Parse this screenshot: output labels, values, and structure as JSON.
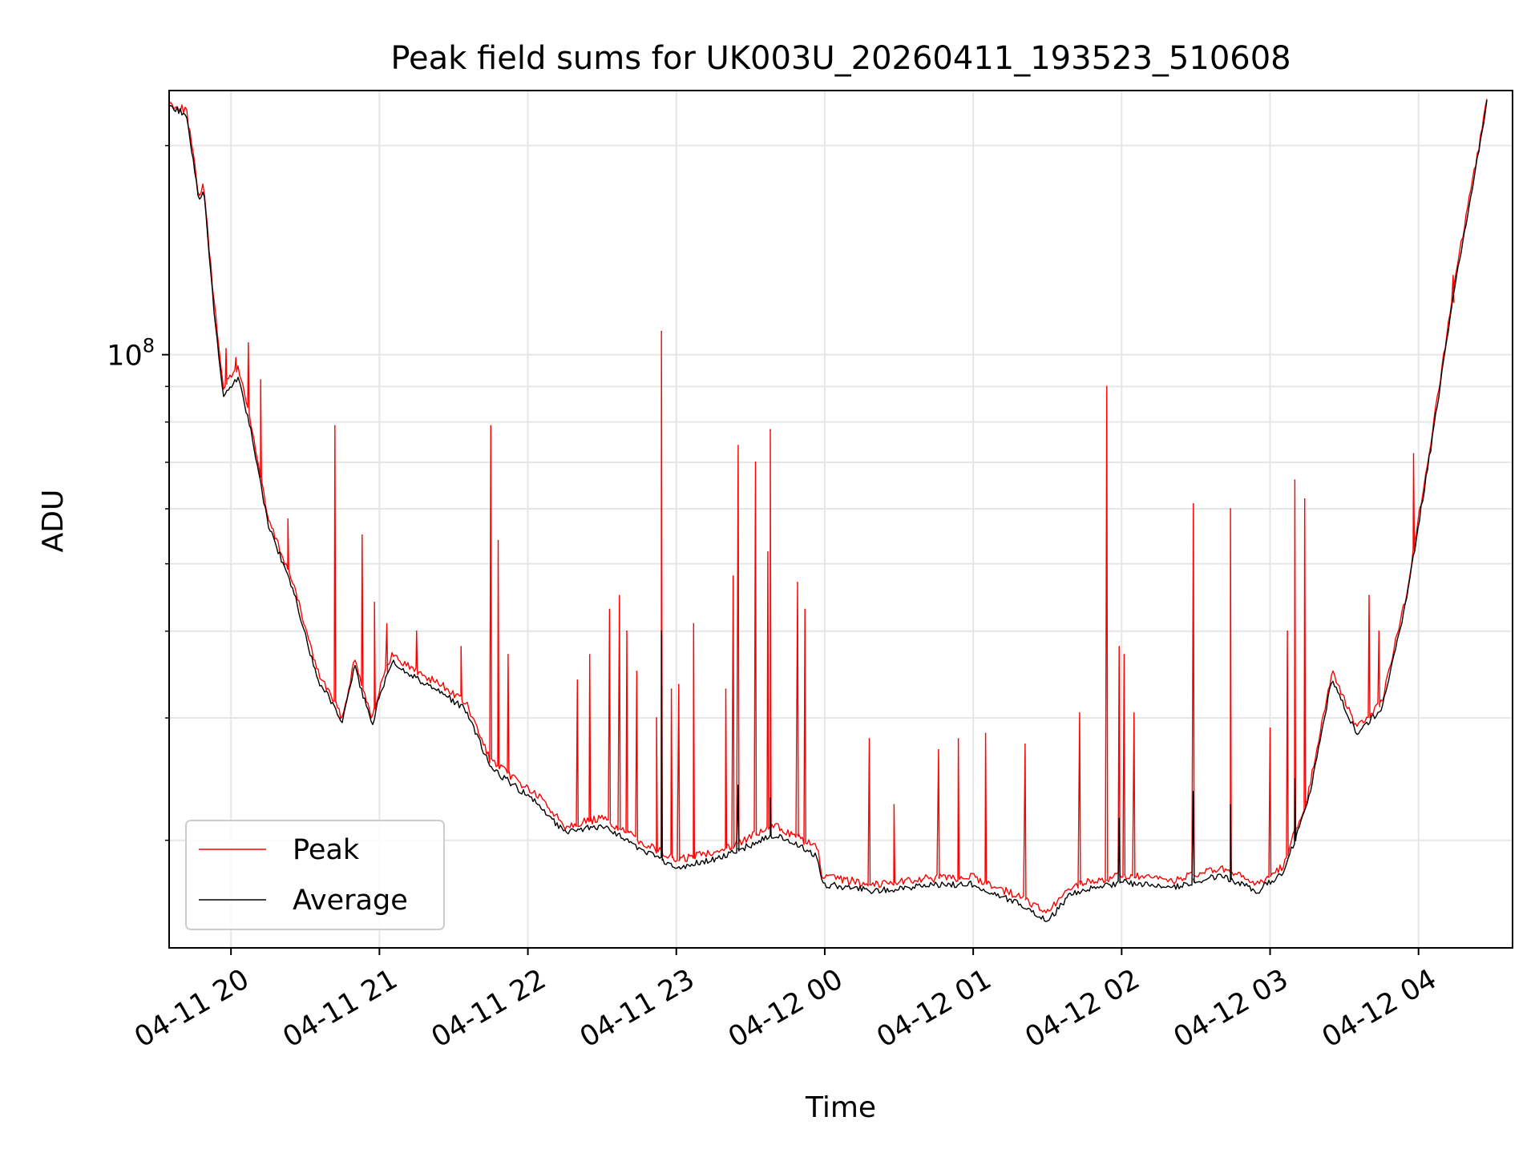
{
  "chart_data": {
    "type": "line",
    "title": "Peak field sums for UK003U_20260411_193523_510608",
    "xlabel": "Time",
    "ylabel": "ADU",
    "y_scale": "log",
    "grid": true,
    "legend_position": "lower-left",
    "x_range": [
      "2026-04-11 19:35",
      "2026-04-12 04:38"
    ],
    "ylim": [
      14000000,
      240000000
    ],
    "x_ticks": [
      {
        "t": "2026-04-11 20:00",
        "label": "04-11 20"
      },
      {
        "t": "2026-04-11 21:00",
        "label": "04-11 21"
      },
      {
        "t": "2026-04-11 22:00",
        "label": "04-11 22"
      },
      {
        "t": "2026-04-11 23:00",
        "label": "04-11 23"
      },
      {
        "t": "2026-04-12 00:00",
        "label": "04-12 00"
      },
      {
        "t": "2026-04-12 01:00",
        "label": "04-12 01"
      },
      {
        "t": "2026-04-12 02:00",
        "label": "04-12 02"
      },
      {
        "t": "2026-04-12 03:00",
        "label": "04-12 03"
      },
      {
        "t": "2026-04-12 04:00",
        "label": "04-12 04"
      }
    ],
    "y_major_ticks": [
      {
        "value": 100000000,
        "base": "10",
        "exp": "8"
      }
    ],
    "y_minor_ticks": [
      20000000,
      30000000,
      40000000,
      50000000,
      60000000,
      70000000,
      80000000,
      90000000,
      200000000
    ],
    "series": [
      {
        "name": "Peak",
        "color": "#ff0000",
        "baseline": [
          [
            "2026-04-11 19:35",
            230000000
          ],
          [
            "2026-04-11 19:42",
            225000000
          ],
          [
            "2026-04-11 19:47",
            170000000
          ],
          [
            "2026-04-11 19:49",
            175000000
          ],
          [
            "2026-04-11 19:53",
            120000000
          ],
          [
            "2026-04-11 19:57",
            90000000
          ],
          [
            "2026-04-11 20:03",
            96000000
          ],
          [
            "2026-04-11 20:08",
            80000000
          ],
          [
            "2026-04-11 20:15",
            58000000
          ],
          [
            "2026-04-11 20:25",
            47000000
          ],
          [
            "2026-04-11 20:35",
            35000000
          ],
          [
            "2026-04-11 20:40",
            32500000
          ],
          [
            "2026-04-11 20:45",
            30000000
          ],
          [
            "2026-04-11 20:50",
            36500000
          ],
          [
            "2026-04-11 20:57",
            30000000
          ],
          [
            "2026-04-11 21:00",
            33000000
          ],
          [
            "2026-04-11 21:05",
            37000000
          ],
          [
            "2026-04-11 21:15",
            35000000
          ],
          [
            "2026-04-11 21:25",
            33500000
          ],
          [
            "2026-04-11 21:35",
            31500000
          ],
          [
            "2026-04-11 21:45",
            26000000
          ],
          [
            "2026-04-11 21:55",
            24500000
          ],
          [
            "2026-04-11 22:05",
            23000000
          ],
          [
            "2026-04-11 22:15",
            21000000
          ],
          [
            "2026-04-11 22:30",
            21500000
          ],
          [
            "2026-04-11 22:45",
            20000000
          ],
          [
            "2026-04-11 23:00",
            18700000
          ],
          [
            "2026-04-11 23:20",
            19500000
          ],
          [
            "2026-04-11 23:40",
            21000000
          ],
          [
            "2026-04-11 23:57",
            19500000
          ],
          [
            "2026-04-11 23:59",
            17700000
          ],
          [
            "2026-04-12 00:20",
            17300000
          ],
          [
            "2026-04-12 00:40",
            17600000
          ],
          [
            "2026-04-12 01:00",
            17700000
          ],
          [
            "2026-04-12 01:20",
            16500000
          ],
          [
            "2026-04-12 01:30",
            15700000
          ],
          [
            "2026-04-12 01:40",
            17200000
          ],
          [
            "2026-04-12 02:00",
            17800000
          ],
          [
            "2026-04-12 02:20",
            17500000
          ],
          [
            "2026-04-12 02:40",
            18200000
          ],
          [
            "2026-04-12 02:55",
            17300000
          ],
          [
            "2026-04-12 03:05",
            18300000
          ],
          [
            "2026-04-12 03:15",
            23000000
          ],
          [
            "2026-04-12 03:25",
            35000000
          ],
          [
            "2026-04-12 03:35",
            29000000
          ],
          [
            "2026-04-12 03:45",
            31500000
          ],
          [
            "2026-04-12 03:55",
            45000000
          ],
          [
            "2026-04-12 04:05",
            75000000
          ],
          [
            "2026-04-12 04:15",
            130000000
          ],
          [
            "2026-04-12 04:25",
            205000000
          ],
          [
            "2026-04-12 04:28",
            240000000
          ]
        ],
        "spikes": [
          [
            "2026-04-11 19:58",
            102000000
          ],
          [
            "2026-04-11 20:02",
            99000000
          ],
          [
            "2026-04-11 20:07",
            104000000
          ],
          [
            "2026-04-11 20:12",
            92000000
          ],
          [
            "2026-04-11 20:23",
            58000000
          ],
          [
            "2026-04-11 20:42",
            79000000
          ],
          [
            "2026-04-11 20:53",
            55000000
          ],
          [
            "2026-04-11 20:58",
            44000000
          ],
          [
            "2026-04-11 21:03",
            41000000
          ],
          [
            "2026-04-11 21:15",
            40000000
          ],
          [
            "2026-04-11 21:33",
            38000000
          ],
          [
            "2026-04-11 21:45",
            79000000
          ],
          [
            "2026-04-11 21:48",
            54000000
          ],
          [
            "2026-04-11 21:52",
            37000000
          ],
          [
            "2026-04-11 22:20",
            34000000
          ],
          [
            "2026-04-11 22:25",
            37000000
          ],
          [
            "2026-04-11 22:33",
            43000000
          ],
          [
            "2026-04-11 22:37",
            45000000
          ],
          [
            "2026-04-11 22:40",
            40000000
          ],
          [
            "2026-04-11 22:44",
            35000000
          ],
          [
            "2026-04-11 22:52",
            30000000
          ],
          [
            "2026-04-11 22:54",
            108000000
          ],
          [
            "2026-04-11 22:58",
            33000000
          ],
          [
            "2026-04-11 23:01",
            33500000
          ],
          [
            "2026-04-11 23:07",
            41000000
          ],
          [
            "2026-04-11 23:20",
            33000000
          ],
          [
            "2026-04-11 23:23",
            48000000
          ],
          [
            "2026-04-11 23:25",
            74000000
          ],
          [
            "2026-04-11 23:32",
            70000000
          ],
          [
            "2026-04-11 23:37",
            52000000
          ],
          [
            "2026-04-11 23:38",
            78000000
          ],
          [
            "2026-04-11 23:49",
            47000000
          ],
          [
            "2026-04-11 23:52",
            43000000
          ],
          [
            "2026-04-12 00:18",
            28000000
          ],
          [
            "2026-04-12 00:28",
            22500000
          ],
          [
            "2026-04-12 00:46",
            27000000
          ],
          [
            "2026-04-12 00:54",
            28000000
          ],
          [
            "2026-04-12 01:05",
            28500000
          ],
          [
            "2026-04-12 01:21",
            27500000
          ],
          [
            "2026-04-12 01:43",
            30500000
          ],
          [
            "2026-04-12 01:54",
            90000000
          ],
          [
            "2026-04-12 01:59",
            38000000
          ],
          [
            "2026-04-12 02:01",
            37000000
          ],
          [
            "2026-04-12 02:05",
            30500000
          ],
          [
            "2026-04-12 02:29",
            61000000
          ],
          [
            "2026-04-12 02:44",
            60000000
          ],
          [
            "2026-04-12 03:00",
            29000000
          ],
          [
            "2026-04-12 03:07",
            40000000
          ],
          [
            "2026-04-12 03:10",
            66000000
          ],
          [
            "2026-04-12 03:14",
            62000000
          ],
          [
            "2026-04-12 03:40",
            45000000
          ],
          [
            "2026-04-12 03:44",
            40000000
          ],
          [
            "2026-04-12 03:58",
            72000000
          ],
          [
            "2026-04-12 04:14",
            130000000
          ]
        ]
      },
      {
        "name": "Average",
        "color": "#000000",
        "baseline": [
          [
            "2026-04-11 19:35",
            228000000
          ],
          [
            "2026-04-11 19:42",
            222000000
          ],
          [
            "2026-04-11 19:47",
            167000000
          ],
          [
            "2026-04-11 19:49",
            172000000
          ],
          [
            "2026-04-11 19:53",
            117000000
          ],
          [
            "2026-04-11 19:57",
            87000000
          ],
          [
            "2026-04-11 20:03",
            93000000
          ],
          [
            "2026-04-11 20:08",
            78000000
          ],
          [
            "2026-04-11 20:15",
            57000000
          ],
          [
            "2026-04-11 20:25",
            46000000
          ],
          [
            "2026-04-11 20:35",
            34000000
          ],
          [
            "2026-04-11 20:40",
            32000000
          ],
          [
            "2026-04-11 20:45",
            29500000
          ],
          [
            "2026-04-11 20:50",
            35500000
          ],
          [
            "2026-04-11 20:57",
            29200000
          ],
          [
            "2026-04-11 21:00",
            32300000
          ],
          [
            "2026-04-11 21:05",
            36200000
          ],
          [
            "2026-04-11 21:15",
            34200000
          ],
          [
            "2026-04-11 21:25",
            32700000
          ],
          [
            "2026-04-11 21:35",
            30800000
          ],
          [
            "2026-04-11 21:45",
            25400000
          ],
          [
            "2026-04-11 21:55",
            23900000
          ],
          [
            "2026-04-11 22:05",
            22400000
          ],
          [
            "2026-04-11 22:15",
            20500000
          ],
          [
            "2026-04-11 22:30",
            21000000
          ],
          [
            "2026-04-11 22:45",
            19500000
          ],
          [
            "2026-04-11 23:00",
            18200000
          ],
          [
            "2026-04-11 23:20",
            19000000
          ],
          [
            "2026-04-11 23:40",
            20400000
          ],
          [
            "2026-04-11 23:57",
            19000000
          ],
          [
            "2026-04-11 23:59",
            17300000
          ],
          [
            "2026-04-12 00:20",
            16900000
          ],
          [
            "2026-04-12 00:40",
            17200000
          ],
          [
            "2026-04-12 01:00",
            17300000
          ],
          [
            "2026-04-12 01:20",
            16100000
          ],
          [
            "2026-04-12 01:30",
            15300000
          ],
          [
            "2026-04-12 01:40",
            16800000
          ],
          [
            "2026-04-12 02:00",
            17400000
          ],
          [
            "2026-04-12 02:20",
            17100000
          ],
          [
            "2026-04-12 02:40",
            17800000
          ],
          [
            "2026-04-12 02:55",
            16900000
          ],
          [
            "2026-04-12 03:05",
            17900000
          ],
          [
            "2026-04-12 03:15",
            22400000
          ],
          [
            "2026-04-12 03:25",
            34200000
          ],
          [
            "2026-04-12 03:35",
            28400000
          ],
          [
            "2026-04-12 03:45",
            30900000
          ],
          [
            "2026-04-12 03:55",
            44000000
          ],
          [
            "2026-04-12 04:05",
            73500000
          ],
          [
            "2026-04-12 04:15",
            127000000
          ],
          [
            "2026-04-12 04:25",
            202000000
          ],
          [
            "2026-04-12 04:28",
            237000000
          ]
        ],
        "spikes": [
          [
            "2026-04-11 22:54",
            40000000
          ],
          [
            "2026-04-11 23:25",
            24000000
          ],
          [
            "2026-04-11 23:38",
            23000000
          ],
          [
            "2026-04-12 01:59",
            21500000
          ],
          [
            "2026-04-12 02:29",
            23500000
          ],
          [
            "2026-04-12 02:44",
            22500000
          ],
          [
            "2026-04-12 03:10",
            24500000
          ]
        ]
      }
    ]
  }
}
